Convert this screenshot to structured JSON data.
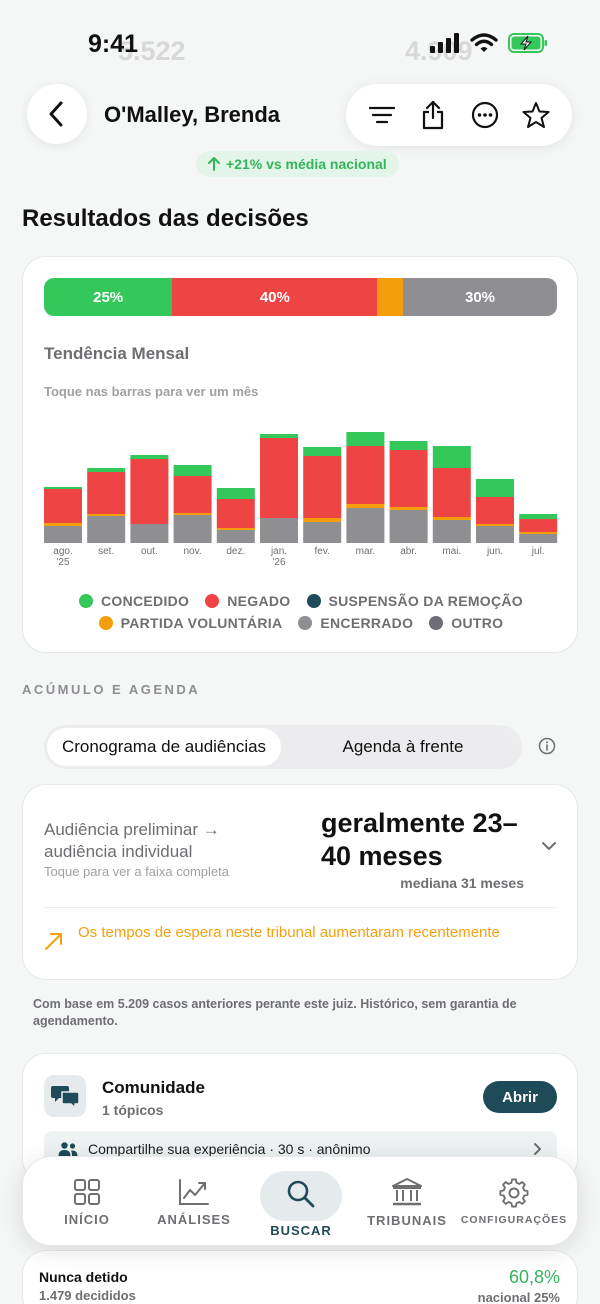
{
  "status_bar": {
    "time": "9:41"
  },
  "background_ghost": {
    "left": "5.522",
    "right": "4.909"
  },
  "header": {
    "judge_name": "O'Malley, Brenda"
  },
  "trend_badge": {
    "text": "+21% vs média nacional"
  },
  "section_title": "Resultados das decisões",
  "results": {
    "stack": [
      {
        "label": "25%",
        "value": 25,
        "color": "#34c759"
      },
      {
        "label": "40%",
        "value": 40,
        "color": "#ef4444"
      },
      {
        "label": "",
        "value": 5,
        "color": "#f59e0b"
      },
      {
        "label": "30%",
        "value": 30,
        "color": "#8e8e93"
      }
    ],
    "trend_title": "Tendência Mensal",
    "trend_hint": "Toque nas barras para ver um mês"
  },
  "chart_data": {
    "type": "bar",
    "stacked": true,
    "categories": [
      "ago. '25",
      "set.",
      "out.",
      "nov.",
      "dez.",
      "jan. '26",
      "fev.",
      "mar.",
      "abr.",
      "mai.",
      "jun.",
      "jul."
    ],
    "series": [
      {
        "name": "ENCERRADO",
        "color": "#8e8e93",
        "values": [
          17,
          27,
          19,
          28,
          13,
          25,
          21,
          35,
          33,
          23,
          17,
          9
        ]
      },
      {
        "name": "PARTIDA VOLUNTÁRIA",
        "color": "#f59e0b",
        "values": [
          3,
          2,
          0,
          2,
          2,
          0,
          4,
          4,
          3,
          3,
          2,
          2
        ]
      },
      {
        "name": "NEGADO",
        "color": "#ef4444",
        "values": [
          34,
          42,
          65,
          37,
          29,
          80,
          62,
          58,
          57,
          49,
          27,
          13
        ]
      },
      {
        "name": "CONCEDIDO",
        "color": "#34c759",
        "values": [
          2,
          4,
          4,
          11,
          11,
          4,
          9,
          14,
          9,
          22,
          18,
          5
        ]
      },
      {
        "name": "SUSPENSÃO DA REMOÇÃO",
        "color": "#1f4a57",
        "values": [
          0,
          0,
          0,
          0,
          0,
          0,
          0,
          0,
          0,
          0,
          0,
          0
        ]
      },
      {
        "name": "OUTRO",
        "color": "#6e6e78",
        "values": [
          0,
          0,
          0,
          0,
          0,
          0,
          0,
          0,
          0,
          0,
          0,
          0
        ]
      }
    ],
    "legend": [
      {
        "name": "CONCEDIDO",
        "color": "#34c759"
      },
      {
        "name": "NEGADO",
        "color": "#ef4444"
      },
      {
        "name": "SUSPENSÃO DA REMOÇÃO",
        "color": "#1f4a57"
      },
      {
        "name": "PARTIDA VOLUNTÁRIA",
        "color": "#f59e0b"
      },
      {
        "name": "ENCERRADO",
        "color": "#8e8e93"
      },
      {
        "name": "OUTRO",
        "color": "#6e6e78"
      }
    ],
    "legend_position": "bottom"
  },
  "backlog": {
    "section_label": "ACÚMULO E AGENDA",
    "tab_active": "Cronograma de audiências",
    "tab_inactive": "Agenda à frente"
  },
  "timeline": {
    "label": "Audiência preliminar → audiência individual",
    "hint": "Toque para ver a faixa completa",
    "value": "geralmente 23–40 meses",
    "median": "mediana 31 meses",
    "warning": "Os tempos de espera neste tribunal aumentaram recentemente"
  },
  "footnote": "Com base em 5.209 casos anteriores perante este juiz. Histórico, sem garantia de agendamento.",
  "community": {
    "title": "Comunidade",
    "subtitle": "1 tópicos",
    "open_label": "Abrir",
    "share_text": "Compartilhe sua experiência · 30 s · anônimo"
  },
  "stats": {
    "label": "Nunca detido",
    "sub": "1.479 decididos",
    "value": "60,8%",
    "national": "nacional 25%"
  },
  "tabbar": {
    "home": "INÍCIO",
    "analytics": "ANÁLISES",
    "search": "BUSCAR",
    "courts": "TRIBUNAIS",
    "settings": "CONFIGURAÇÕES"
  }
}
